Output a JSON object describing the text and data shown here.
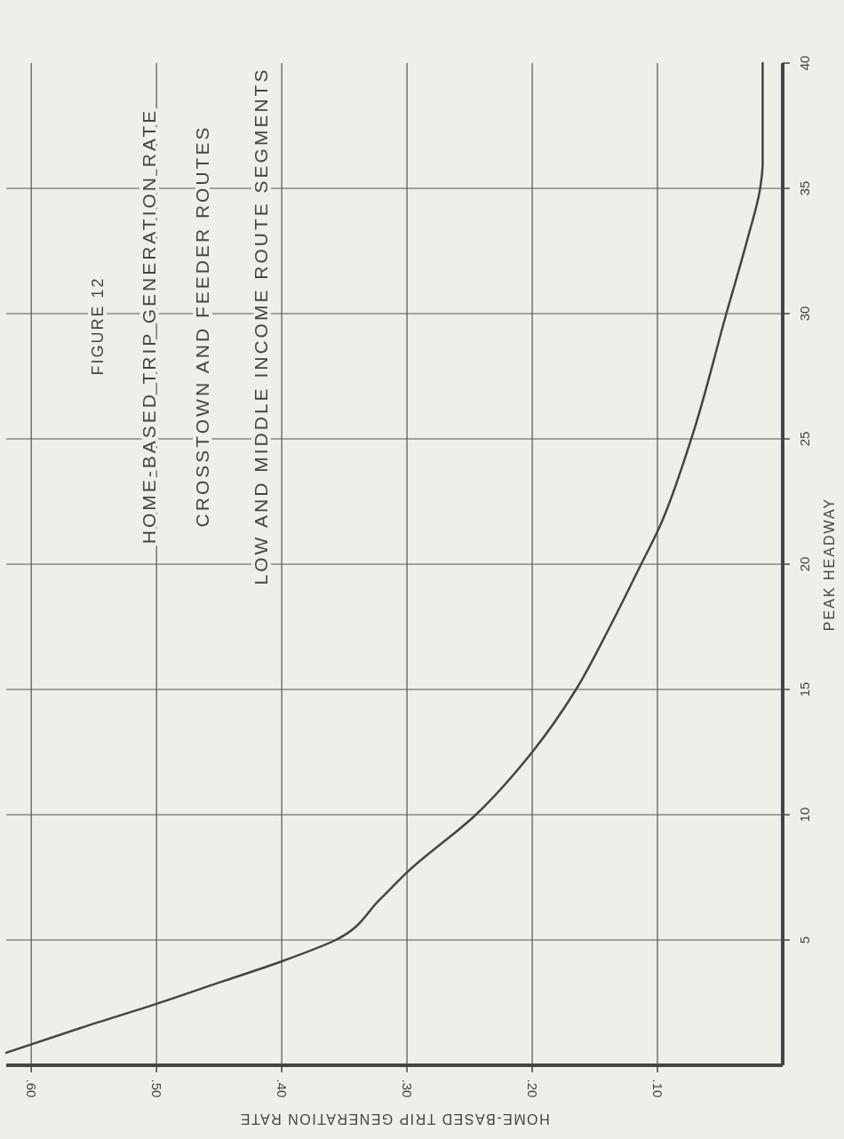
{
  "chart_data": {
    "type": "line",
    "title": "FIGURE 12",
    "subtitle": "HOME-BASED TRIP GENERATION RATE",
    "annotations": [
      "CROSSTOWN AND FEEDER ROUTES",
      "LOW AND MIDDLE INCOME ROUTE SEGMENTS"
    ],
    "xlabel": "HOME-BASED TRIP GENERATION RATE",
    "ylabel": "PEAK HEADWAY",
    "xlim": [
      0.62,
      0
    ],
    "xticks": [
      {
        "value": 0.6,
        "label": ".60"
      },
      {
        "value": 0.5,
        "label": ".50"
      },
      {
        "value": 0.4,
        "label": ".40"
      },
      {
        "value": 0.3,
        "label": ".30"
      },
      {
        "value": 0.2,
        "label": ".20"
      },
      {
        "value": 0.1,
        "label": ".10"
      }
    ],
    "ylim": [
      0,
      40
    ],
    "yticks": [
      5,
      10,
      15,
      20,
      25,
      30,
      35,
      40
    ],
    "grid": true,
    "marker": "none",
    "line_style": "solid",
    "series": [
      {
        "color": "#444444",
        "x": [
          0.62,
          0.56,
          0.5,
          0.45,
          0.4,
          0.357,
          0.322,
          0.3,
          0.245,
          0.2,
          0.165,
          0.138,
          0.113,
          0.1,
          0.073,
          0.045,
          0.028,
          0.018,
          0.016,
          0.016
        ],
        "values": [
          0.5,
          1.5,
          2.45,
          3.3,
          4.15,
          5,
          6.6,
          7.7,
          10,
          12.5,
          15,
          17.5,
          20,
          21.3,
          25,
          30,
          33,
          35,
          36,
          40
        ]
      }
    ]
  }
}
